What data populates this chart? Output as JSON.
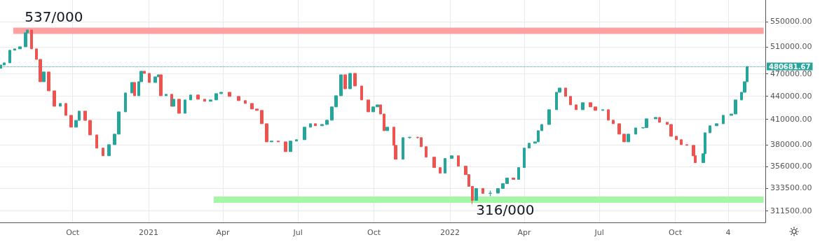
{
  "chart_data": {
    "type": "candlestick",
    "x": [
      "2020-07-06",
      "2020-07-10",
      "2020-07-17",
      "2020-07-23",
      "2020-07-29",
      "2020-08-05",
      "2020-08-07",
      "2020-08-12",
      "2020-08-18",
      "2020-08-23",
      "2020-08-27",
      "2020-09-02",
      "2020-09-09",
      "2020-09-16",
      "2020-09-23",
      "2020-09-29",
      "2020-10-05",
      "2020-10-09",
      "2020-10-16",
      "2020-10-22",
      "2020-10-30",
      "2020-11-07",
      "2020-11-14",
      "2020-11-21",
      "2020-11-26",
      "2020-12-04",
      "2020-12-12",
      "2020-12-15",
      "2020-12-20",
      "2020-12-23",
      "2020-12-27",
      "2021-01-02",
      "2021-01-09",
      "2021-01-13",
      "2021-01-16",
      "2021-01-22",
      "2021-01-29",
      "2021-01-31",
      "2021-02-07",
      "2021-02-14",
      "2021-02-21",
      "2021-03-02",
      "2021-03-10",
      "2021-03-17",
      "2021-03-24",
      "2021-03-30",
      "2021-04-09",
      "2021-04-20",
      "2021-04-28",
      "2021-05-06",
      "2021-05-12",
      "2021-05-18",
      "2021-05-24",
      "2021-05-30",
      "2021-06-07",
      "2021-06-16",
      "2021-06-22",
      "2021-06-29",
      "2021-07-09",
      "2021-07-16",
      "2021-07-22",
      "2021-07-30",
      "2021-08-05",
      "2021-08-11",
      "2021-08-16",
      "2021-08-22",
      "2021-08-27",
      "2021-09-02",
      "2021-09-08",
      "2021-09-16",
      "2021-09-24",
      "2021-09-30",
      "2021-10-05",
      "2021-10-09",
      "2021-10-13",
      "2021-10-17",
      "2021-10-25",
      "2021-10-27",
      "2021-11-05",
      "2021-11-13",
      "2021-11-23",
      "2021-11-27",
      "2021-12-03",
      "2021-12-13",
      "2021-12-20",
      "2021-12-26",
      "2022-01-03",
      "2022-01-11",
      "2022-01-20",
      "2022-01-24",
      "2022-01-28",
      "2022-02-02",
      "2022-02-10",
      "2022-02-19",
      "2022-02-28",
      "2022-03-06",
      "2022-03-11",
      "2022-03-19",
      "2022-03-25",
      "2022-04-01",
      "2022-04-07",
      "2022-04-14",
      "2022-04-18",
      "2022-04-22",
      "2022-05-01",
      "2022-05-10",
      "2022-05-14",
      "2022-05-21",
      "2022-05-27",
      "2022-06-03",
      "2022-06-11",
      "2022-06-20",
      "2022-06-26",
      "2022-07-05",
      "2022-07-12",
      "2022-07-18",
      "2022-07-25",
      "2022-07-31",
      "2022-08-05",
      "2022-08-14",
      "2022-08-23",
      "2022-08-27",
      "2022-09-07",
      "2022-09-12",
      "2022-09-21",
      "2022-09-26",
      "2022-10-02",
      "2022-10-08",
      "2022-10-15",
      "2022-10-23",
      "2022-10-25",
      "2022-11-04",
      "2022-11-06",
      "2022-11-12",
      "2022-11-20",
      "2022-11-28",
      "2022-12-08",
      "2022-12-13",
      "2022-12-20",
      "2022-12-24",
      "2022-12-27"
    ],
    "ohlc": [
      [
        478000,
        482800,
        478000,
        482800
      ],
      [
        482800,
        485900,
        482800,
        485900
      ],
      [
        485900,
        504700,
        485900,
        504700
      ],
      [
        504700,
        506800,
        504700,
        506800
      ],
      [
        506800,
        510000,
        506800,
        510000
      ],
      [
        510000,
        531900,
        510000,
        531900
      ],
      [
        531900,
        537000,
        531900,
        536300
      ],
      [
        536300,
        536300,
        506800,
        506800
      ],
      [
        506800,
        506800,
        491000,
        491000
      ],
      [
        491000,
        491000,
        459100,
        459100
      ],
      [
        459100,
        472800,
        459100,
        472800
      ],
      [
        472800,
        472800,
        446700,
        446700
      ],
      [
        446700,
        446700,
        426500,
        426500
      ],
      [
        426500,
        430100,
        426500,
        430100
      ],
      [
        430100,
        430100,
        415000,
        415000
      ],
      [
        415000,
        415000,
        400500,
        400500
      ],
      [
        400500,
        408800,
        400500,
        408800
      ],
      [
        408800,
        420300,
        408800,
        420300
      ],
      [
        420300,
        420300,
        408800,
        408800
      ],
      [
        408800,
        408800,
        391300,
        391300
      ],
      [
        391300,
        391300,
        376100,
        376100
      ],
      [
        376100,
        376100,
        367500,
        367500
      ],
      [
        367500,
        380000,
        367500,
        380000
      ],
      [
        380000,
        392200,
        380000,
        392200
      ],
      [
        392200,
        419400,
        392200,
        419400
      ],
      [
        419400,
        443900,
        419400,
        443900
      ],
      [
        443900,
        458100,
        443900,
        458100
      ],
      [
        458100,
        458100,
        440200,
        440200
      ],
      [
        440200,
        459100,
        440200,
        459100
      ],
      [
        459100,
        473800,
        459100,
        473800
      ],
      [
        473800,
        473800,
        470800,
        470800
      ],
      [
        470800,
        470800,
        458100,
        458100
      ],
      [
        458100,
        465900,
        458100,
        465900
      ],
      [
        465900,
        468800,
        465900,
        468800
      ],
      [
        468800,
        468800,
        440200,
        440200
      ],
      [
        440200,
        442100,
        440200,
        442100
      ],
      [
        442100,
        442100,
        426500,
        426500
      ],
      [
        426500,
        435600,
        426500,
        435600
      ],
      [
        435600,
        435600,
        417600,
        417600
      ],
      [
        417600,
        434700,
        417600,
        434700
      ],
      [
        434700,
        441200,
        434700,
        441200
      ],
      [
        441200,
        441200,
        435600,
        435600
      ],
      [
        435600,
        435600,
        432900,
        432900
      ],
      [
        432900,
        434700,
        432900,
        434700
      ],
      [
        434700,
        443000,
        434700,
        443000
      ],
      [
        443000,
        444800,
        443000,
        444800
      ],
      [
        444800,
        444800,
        439300,
        439300
      ],
      [
        439300,
        439300,
        433800,
        433800
      ],
      [
        433800,
        433800,
        430100,
        430100
      ],
      [
        430100,
        430100,
        423000,
        423000
      ],
      [
        423000,
        423000,
        421200,
        421200
      ],
      [
        421200,
        421200,
        404700,
        404700
      ],
      [
        404700,
        404700,
        383200,
        383200
      ],
      [
        383200,
        384100,
        383200,
        384100
      ],
      [
        384100,
        384100,
        383200,
        383200
      ],
      [
        383200,
        383200,
        372100,
        372100
      ],
      [
        372100,
        384100,
        372100,
        384100
      ],
      [
        384100,
        385700,
        384100,
        385700
      ],
      [
        385700,
        400500,
        385700,
        400500
      ],
      [
        400500,
        404700,
        400500,
        404700
      ],
      [
        404700,
        404700,
        402200,
        402200
      ],
      [
        402200,
        403800,
        402200,
        403800
      ],
      [
        403800,
        409000,
        403800,
        409000
      ],
      [
        409000,
        425700,
        409000,
        425700
      ],
      [
        425700,
        440200,
        425700,
        440200
      ],
      [
        440200,
        468800,
        440200,
        468800
      ],
      [
        468800,
        468800,
        449500,
        449500
      ],
      [
        449500,
        470800,
        449500,
        470800
      ],
      [
        470800,
        470800,
        453300,
        453300
      ],
      [
        453300,
        453300,
        434700,
        434700
      ],
      [
        434700,
        434700,
        419400,
        419400
      ],
      [
        419400,
        425700,
        419400,
        425700
      ],
      [
        425700,
        428300,
        425700,
        428300
      ],
      [
        428300,
        428300,
        416700,
        416700
      ],
      [
        416700,
        416700,
        396300,
        396300
      ],
      [
        396300,
        400500,
        396300,
        400500
      ],
      [
        400500,
        400500,
        379200,
        379200
      ],
      [
        379200,
        379200,
        363700,
        363700
      ],
      [
        363700,
        388100,
        363700,
        388100
      ],
      [
        388100,
        389000,
        387000,
        388600
      ],
      [
        388600,
        389000,
        387000,
        388100
      ],
      [
        388100,
        388100,
        377700,
        377700
      ],
      [
        377700,
        377700,
        366000,
        366000
      ],
      [
        366000,
        366000,
        354700,
        354700
      ],
      [
        354700,
        354700,
        348800,
        348800
      ],
      [
        348800,
        364500,
        348800,
        364500
      ],
      [
        364500,
        367500,
        364500,
        367500
      ],
      [
        367500,
        367500,
        356200,
        356200
      ],
      [
        356200,
        356200,
        347300,
        347300
      ],
      [
        347300,
        347300,
        335200,
        335200
      ],
      [
        335200,
        335200,
        318000,
        321400
      ],
      [
        321400,
        333100,
        321400,
        333100
      ],
      [
        333100,
        333100,
        328200,
        328200
      ],
      [
        328200,
        331000,
        325500,
        328500
      ],
      [
        328500,
        333100,
        328500,
        333100
      ],
      [
        333100,
        338000,
        333100,
        338000
      ],
      [
        338000,
        343700,
        338000,
        343700
      ],
      [
        343700,
        343700,
        342300,
        342300
      ],
      [
        342300,
        354700,
        342300,
        354700
      ],
      [
        354700,
        376100,
        354700,
        376100
      ],
      [
        376100,
        381600,
        376100,
        381600
      ],
      [
        381600,
        383200,
        381600,
        383200
      ],
      [
        383200,
        396300,
        383200,
        396300
      ],
      [
        396300,
        403800,
        396300,
        403800
      ],
      [
        403800,
        422100,
        403800,
        422100
      ],
      [
        422100,
        444800,
        422100,
        444800
      ],
      [
        444800,
        450500,
        444800,
        450500
      ],
      [
        450500,
        450500,
        439300,
        439300
      ],
      [
        439300,
        439300,
        428300,
        428300
      ],
      [
        428300,
        428300,
        422100,
        422100
      ],
      [
        422100,
        431100,
        422100,
        431100
      ],
      [
        431100,
        431100,
        425700,
        425700
      ],
      [
        425700,
        425700,
        421200,
        421200
      ],
      [
        421200,
        422100,
        421200,
        422100
      ],
      [
        422100,
        422100,
        409000,
        409000
      ],
      [
        409000,
        409000,
        404700,
        404700
      ],
      [
        404700,
        404700,
        392200,
        392200
      ],
      [
        392200,
        392200,
        383200,
        383200
      ],
      [
        383200,
        392200,
        383200,
        392200
      ],
      [
        392200,
        399600,
        392200,
        399600
      ],
      [
        399600,
        400500,
        398800,
        400000
      ],
      [
        400000,
        410700,
        400000,
        410700
      ],
      [
        410700,
        412400,
        410700,
        412400
      ],
      [
        412400,
        412400,
        406400,
        406400
      ],
      [
        406400,
        406400,
        403800,
        403800
      ],
      [
        403800,
        403800,
        389700,
        389700
      ],
      [
        389700,
        389700,
        385700,
        385700
      ],
      [
        385700,
        385700,
        380000,
        380000
      ],
      [
        380000,
        380000,
        379200,
        379200
      ],
      [
        379200,
        379200,
        367500,
        367500
      ],
      [
        367500,
        367500,
        360000,
        360000
      ],
      [
        360000,
        369800,
        360000,
        369800
      ],
      [
        369800,
        393800,
        369800,
        393800
      ],
      [
        393800,
        402200,
        393800,
        402200
      ],
      [
        402200,
        404700,
        402200,
        404700
      ],
      [
        404700,
        415000,
        404700,
        415000
      ],
      [
        415000,
        416700,
        415000,
        416700
      ],
      [
        416700,
        434700,
        416700,
        434700
      ],
      [
        434700,
        444800,
        434700,
        444800
      ],
      [
        444800,
        459100,
        444800,
        459100
      ],
      [
        459100,
        480681.67,
        459100,
        480681.67
      ]
    ],
    "series": [
      {
        "type": "line",
        "x": [
          "2020-07-21",
          "2023-01-16"
        ],
        "values": [
          535000,
          535000
        ],
        "color": "#ffa1a1"
      },
      {
        "type": "line",
        "x": [
          "2021-03-21",
          "2023-01-16"
        ],
        "values": [
          322000,
          322000
        ],
        "color": "#a4f7a4"
      }
    ],
    "ref_lines": [
      {
        "axis": "y",
        "value": 480681.67,
        "label": "480681.67",
        "color": "#26a69a",
        "line_style": "dotted"
      }
    ],
    "annotations": [
      {
        "text": "537/000",
        "x": "2020-08-07",
        "y": 537000
      },
      {
        "text": "316/000",
        "x": "2022-01-28",
        "y": 318000
      }
    ],
    "log": "y",
    "xlim": [
      "2020-07-05",
      "2023-01-18"
    ],
    "xticks": [
      {
        "value": "2020-10-01",
        "label": "Oct"
      },
      {
        "value": "2021-01-01",
        "label": "2021"
      },
      {
        "value": "2021-04-01",
        "label": "Apr"
      },
      {
        "value": "2021-07-01",
        "label": "Jul"
      },
      {
        "value": "2021-10-01",
        "label": "Oct"
      },
      {
        "value": "2022-01-01",
        "label": "2022"
      },
      {
        "value": "2022-04-01",
        "label": "Apr"
      },
      {
        "value": "2022-07-01",
        "label": "Jul"
      },
      {
        "value": "2022-10-01",
        "label": "Oct"
      },
      {
        "value": "2022-12-04",
        "label": "4"
      }
    ],
    "ylim": [
      300800,
      587000
    ],
    "yticks": [
      {
        "value": 311500,
        "label": "311500.00"
      },
      {
        "value": 333500,
        "label": "333500.00"
      },
      {
        "value": 356000,
        "label": "356000.00"
      },
      {
        "value": 380000,
        "label": "380000.00"
      },
      {
        "value": 410000,
        "label": "410000.00"
      },
      {
        "value": 440000,
        "label": "440000.00"
      },
      {
        "value": 470000,
        "label": "470000.00"
      },
      {
        "value": 510000,
        "label": "510000.00"
      },
      {
        "value": 550000,
        "label": "550000.00"
      }
    ],
    "grid": true
  }
}
